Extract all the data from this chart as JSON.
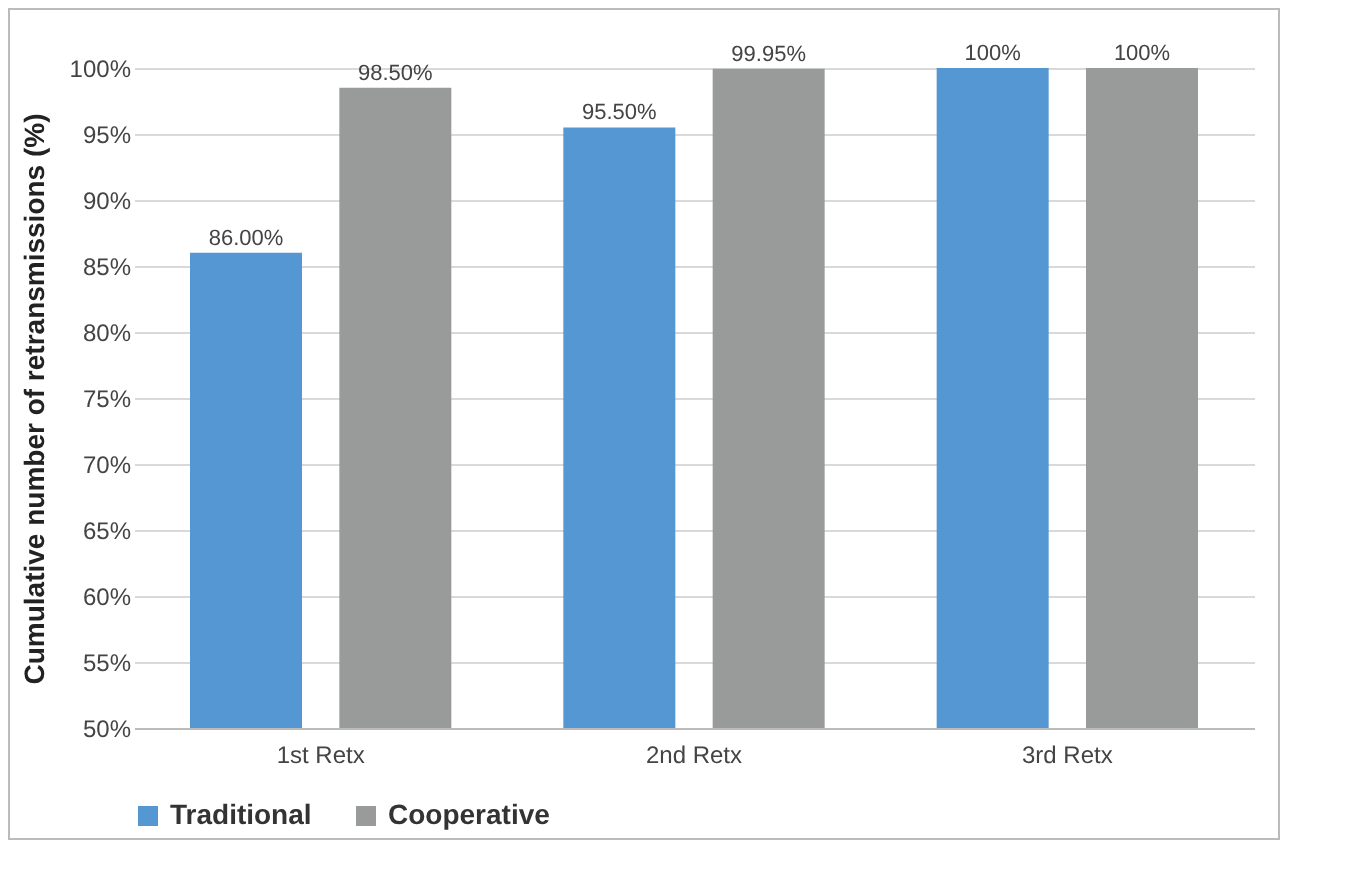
{
  "chart_data": {
    "type": "bar",
    "ylabel": "Cumulative number of retransmissions (%)",
    "categories": [
      "1st Retx",
      "2nd Retx",
      "3rd Retx"
    ],
    "series": [
      {
        "name": "Traditional",
        "color": "#5597d3",
        "values": [
          86,
          95.5,
          100
        ],
        "value_labels": [
          "86.00%",
          "95.50%",
          "100%"
        ]
      },
      {
        "name": "Cooperative",
        "color": "#999b9b",
        "values": [
          98.5,
          99.95,
          100
        ],
        "value_labels": [
          "98.50%",
          "99.95%",
          "100%"
        ]
      }
    ],
    "ylim": [
      50,
      100
    ],
    "yticks": [
      {
        "value": 50,
        "label": "50%"
      },
      {
        "value": 55,
        "label": "55%"
      },
      {
        "value": 60,
        "label": "60%"
      },
      {
        "value": 65,
        "label": "65%"
      },
      {
        "value": 70,
        "label": "70%"
      },
      {
        "value": 75,
        "label": "75%"
      },
      {
        "value": 80,
        "label": "80%"
      },
      {
        "value": 85,
        "label": "85%"
      },
      {
        "value": 90,
        "label": "90%"
      },
      {
        "value": 95,
        "label": "95%"
      },
      {
        "value": 100,
        "label": "100%"
      }
    ],
    "grid": "y",
    "legend": "bottom"
  }
}
